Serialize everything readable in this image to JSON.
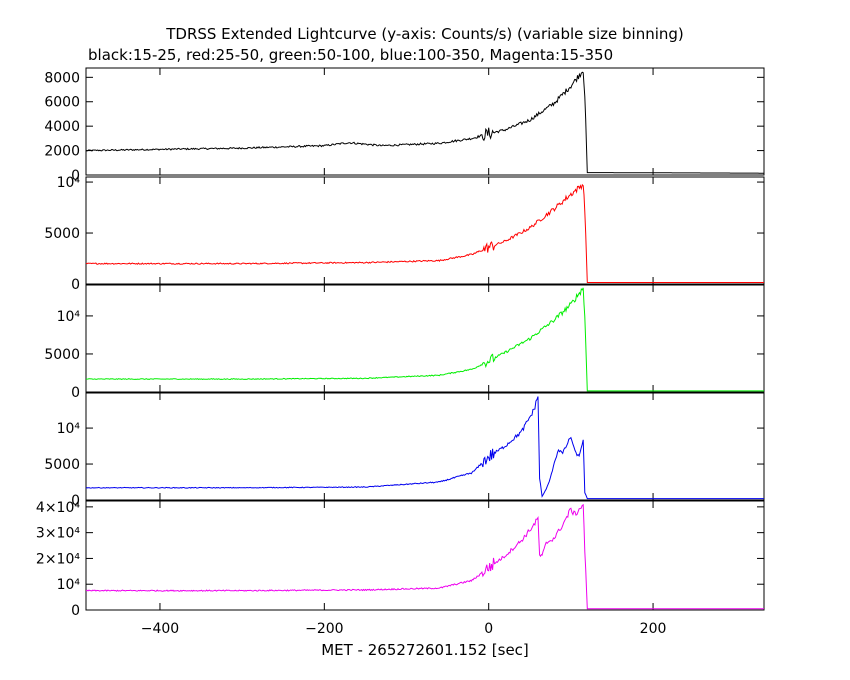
{
  "title_lines": [
    "TDRSS Extended Lightcurve (y-axis: Counts/s) (variable size binning)",
    "black:15-25, red:25-50, green:50-100, blue:100-350, Magenta:15-350"
  ],
  "xlabel": "MET - 265272601.152 [sec]",
  "chart_data": [
    {
      "type": "line",
      "name": "15-25",
      "color": "#000000",
      "xlim": [
        -490,
        335
      ],
      "ylim": [
        0,
        8600
      ],
      "yticks": [
        0,
        2000,
        4000,
        6000,
        8000
      ],
      "ytick_labels": [
        "0",
        "2000",
        "4000",
        "6000",
        "8000"
      ],
      "x": [
        -490,
        -400,
        -300,
        -200,
        -170,
        -130,
        -60,
        -20,
        0,
        20,
        50,
        80,
        100,
        115,
        117,
        120,
        335
      ],
      "y": [
        2000,
        2100,
        2200,
        2400,
        2650,
        2400,
        2600,
        3000,
        3400,
        3700,
        4500,
        5900,
        7300,
        8600,
        6500,
        200,
        150
      ]
    },
    {
      "type": "line",
      "name": "25-50",
      "color": "#ff0000",
      "xlim": [
        -490,
        335
      ],
      "ylim": [
        0,
        10300
      ],
      "yticks": [
        0,
        5000,
        10000
      ],
      "ytick_labels": [
        "0",
        "5000",
        "10⁴"
      ],
      "x": [
        -490,
        -300,
        -150,
        -60,
        -20,
        0,
        20,
        50,
        80,
        100,
        115,
        117,
        120,
        335
      ],
      "y": [
        2000,
        2000,
        2100,
        2300,
        2900,
        3600,
        4200,
        5500,
        7400,
        8800,
        9800,
        7300,
        150,
        150
      ]
    },
    {
      "type": "line",
      "name": "50-100",
      "color": "#00ee00",
      "xlim": [
        -490,
        335
      ],
      "ylim": [
        0,
        13800
      ],
      "yticks": [
        0,
        5000,
        10000
      ],
      "ytick_labels": [
        "0",
        "5000",
        "10⁴"
      ],
      "x": [
        -490,
        -300,
        -150,
        -60,
        -20,
        0,
        20,
        50,
        80,
        100,
        115,
        117,
        120,
        335
      ],
      "y": [
        1700,
        1700,
        1800,
        2200,
        3000,
        4100,
        5200,
        7000,
        9500,
        11500,
        13700,
        9800,
        150,
        150
      ]
    },
    {
      "type": "line",
      "name": "100-350",
      "color": "#0000ee",
      "xlim": [
        -490,
        335
      ],
      "ylim": [
        0,
        14600
      ],
      "yticks": [
        0,
        5000,
        10000
      ],
      "ytick_labels": [
        "0",
        "5000",
        "10⁴"
      ],
      "x": [
        -490,
        -300,
        -150,
        -60,
        -20,
        0,
        20,
        40,
        55,
        60,
        62,
        65,
        70,
        75,
        80,
        85,
        90,
        100,
        105,
        110,
        115,
        117,
        120,
        335
      ],
      "y": [
        1700,
        1700,
        1800,
        2500,
        3800,
        6000,
        7500,
        9500,
        12500,
        14500,
        3000,
        500,
        1500,
        3000,
        5300,
        7000,
        6500,
        8800,
        6700,
        6000,
        8500,
        1000,
        200,
        200
      ]
    },
    {
      "type": "line",
      "name": "15-350",
      "color": "#ee00ee",
      "xlim": [
        -490,
        335
      ],
      "ylim": [
        0,
        41500
      ],
      "yticks": [
        0,
        10000,
        20000,
        30000,
        40000
      ],
      "ytick_labels": [
        "0",
        "10⁴",
        "2×10⁴",
        "3×10⁴",
        "4×10⁴"
      ],
      "x": [
        -490,
        -300,
        -150,
        -60,
        -20,
        0,
        20,
        40,
        55,
        60,
        62,
        65,
        70,
        80,
        90,
        100,
        105,
        110,
        115,
        117,
        120,
        335
      ],
      "y": [
        7500,
        7500,
        7800,
        8500,
        11500,
        16500,
        21000,
        27000,
        33000,
        35500,
        21000,
        21000,
        26000,
        28000,
        33000,
        39000,
        37000,
        39000,
        41000,
        23000,
        500,
        500
      ]
    }
  ],
  "xaxis": {
    "ticks": [
      -400,
      -200,
      0,
      200
    ],
    "tick_labels": [
      "−400",
      "−200",
      "0",
      "200"
    ]
  }
}
